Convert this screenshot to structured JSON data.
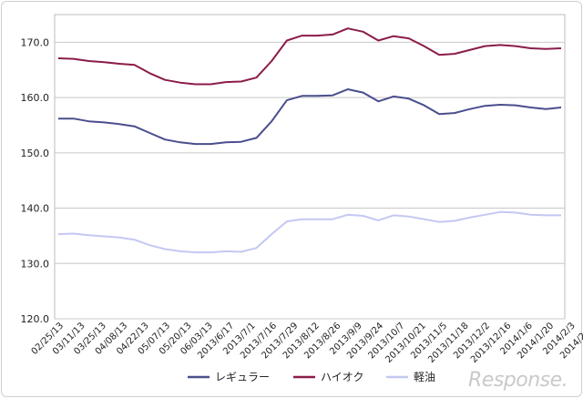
{
  "chart_data": {
    "type": "line",
    "title": "",
    "xlabel": "",
    "ylabel": "",
    "ylim": [
      120,
      175
    ],
    "y_ticks": [
      "120.0",
      "130.0",
      "140.0",
      "150.0",
      "160.0",
      "170.0"
    ],
    "grid": "horizontal",
    "legend_position": "bottom",
    "x_tick_labels": [
      "02/25/13",
      "03/11/13",
      "03/25/13",
      "04/08/13",
      "04/22/13",
      "05/07/13",
      "05/20/13",
      "06/03/13",
      "2013/6/17",
      "2013/7/1",
      "2013/7/16",
      "2013/7/29",
      "2013/8/12",
      "2013/8/26",
      "2013/9/9",
      "2013/9/24",
      "2013/10/7",
      "2013/10/21",
      "2013/11/5",
      "2013/11/18",
      "2013/12/2",
      "2013/12/16",
      "2014/1/6",
      "2014/1/20",
      "2014/2/3",
      "2014/2/17",
      "2014/3/3"
    ],
    "series": [
      {
        "name": "レギュラー",
        "color": "#4a4e8c",
        "values": [
          156.2,
          156.2,
          155.7,
          155.5,
          155.2,
          154.8,
          153.6,
          152.4,
          151.9,
          151.6,
          151.6,
          151.9,
          152.0,
          152.7,
          155.7,
          159.5,
          160.3,
          160.3,
          160.4,
          161.5,
          160.9,
          159.3,
          160.2,
          159.8,
          158.6,
          157.0,
          157.2,
          157.9,
          158.5,
          158.7,
          158.6,
          158.2,
          157.9,
          158.2
        ]
      },
      {
        "name": "ハイオク",
        "color": "#8b1c4a",
        "values": [
          167.1,
          167.0,
          166.6,
          166.4,
          166.1,
          165.9,
          164.4,
          163.2,
          162.7,
          162.4,
          162.4,
          162.8,
          162.9,
          163.6,
          166.6,
          170.3,
          171.2,
          171.2,
          171.4,
          172.5,
          171.9,
          170.3,
          171.1,
          170.7,
          169.3,
          167.7,
          167.9,
          168.6,
          169.3,
          169.5,
          169.3,
          168.9,
          168.8,
          168.9
        ]
      },
      {
        "name": "軽油",
        "color": "#c4c8f2",
        "values": [
          135.3,
          135.4,
          135.1,
          134.9,
          134.7,
          134.3,
          133.3,
          132.6,
          132.2,
          132.0,
          132.0,
          132.2,
          132.1,
          132.8,
          135.3,
          137.6,
          138.0,
          138.0,
          138.0,
          138.8,
          138.6,
          137.8,
          138.7,
          138.5,
          138.0,
          137.5,
          137.7,
          138.3,
          138.8,
          139.3,
          139.2,
          138.8,
          138.7,
          138.7
        ]
      }
    ]
  },
  "watermark": "Response."
}
